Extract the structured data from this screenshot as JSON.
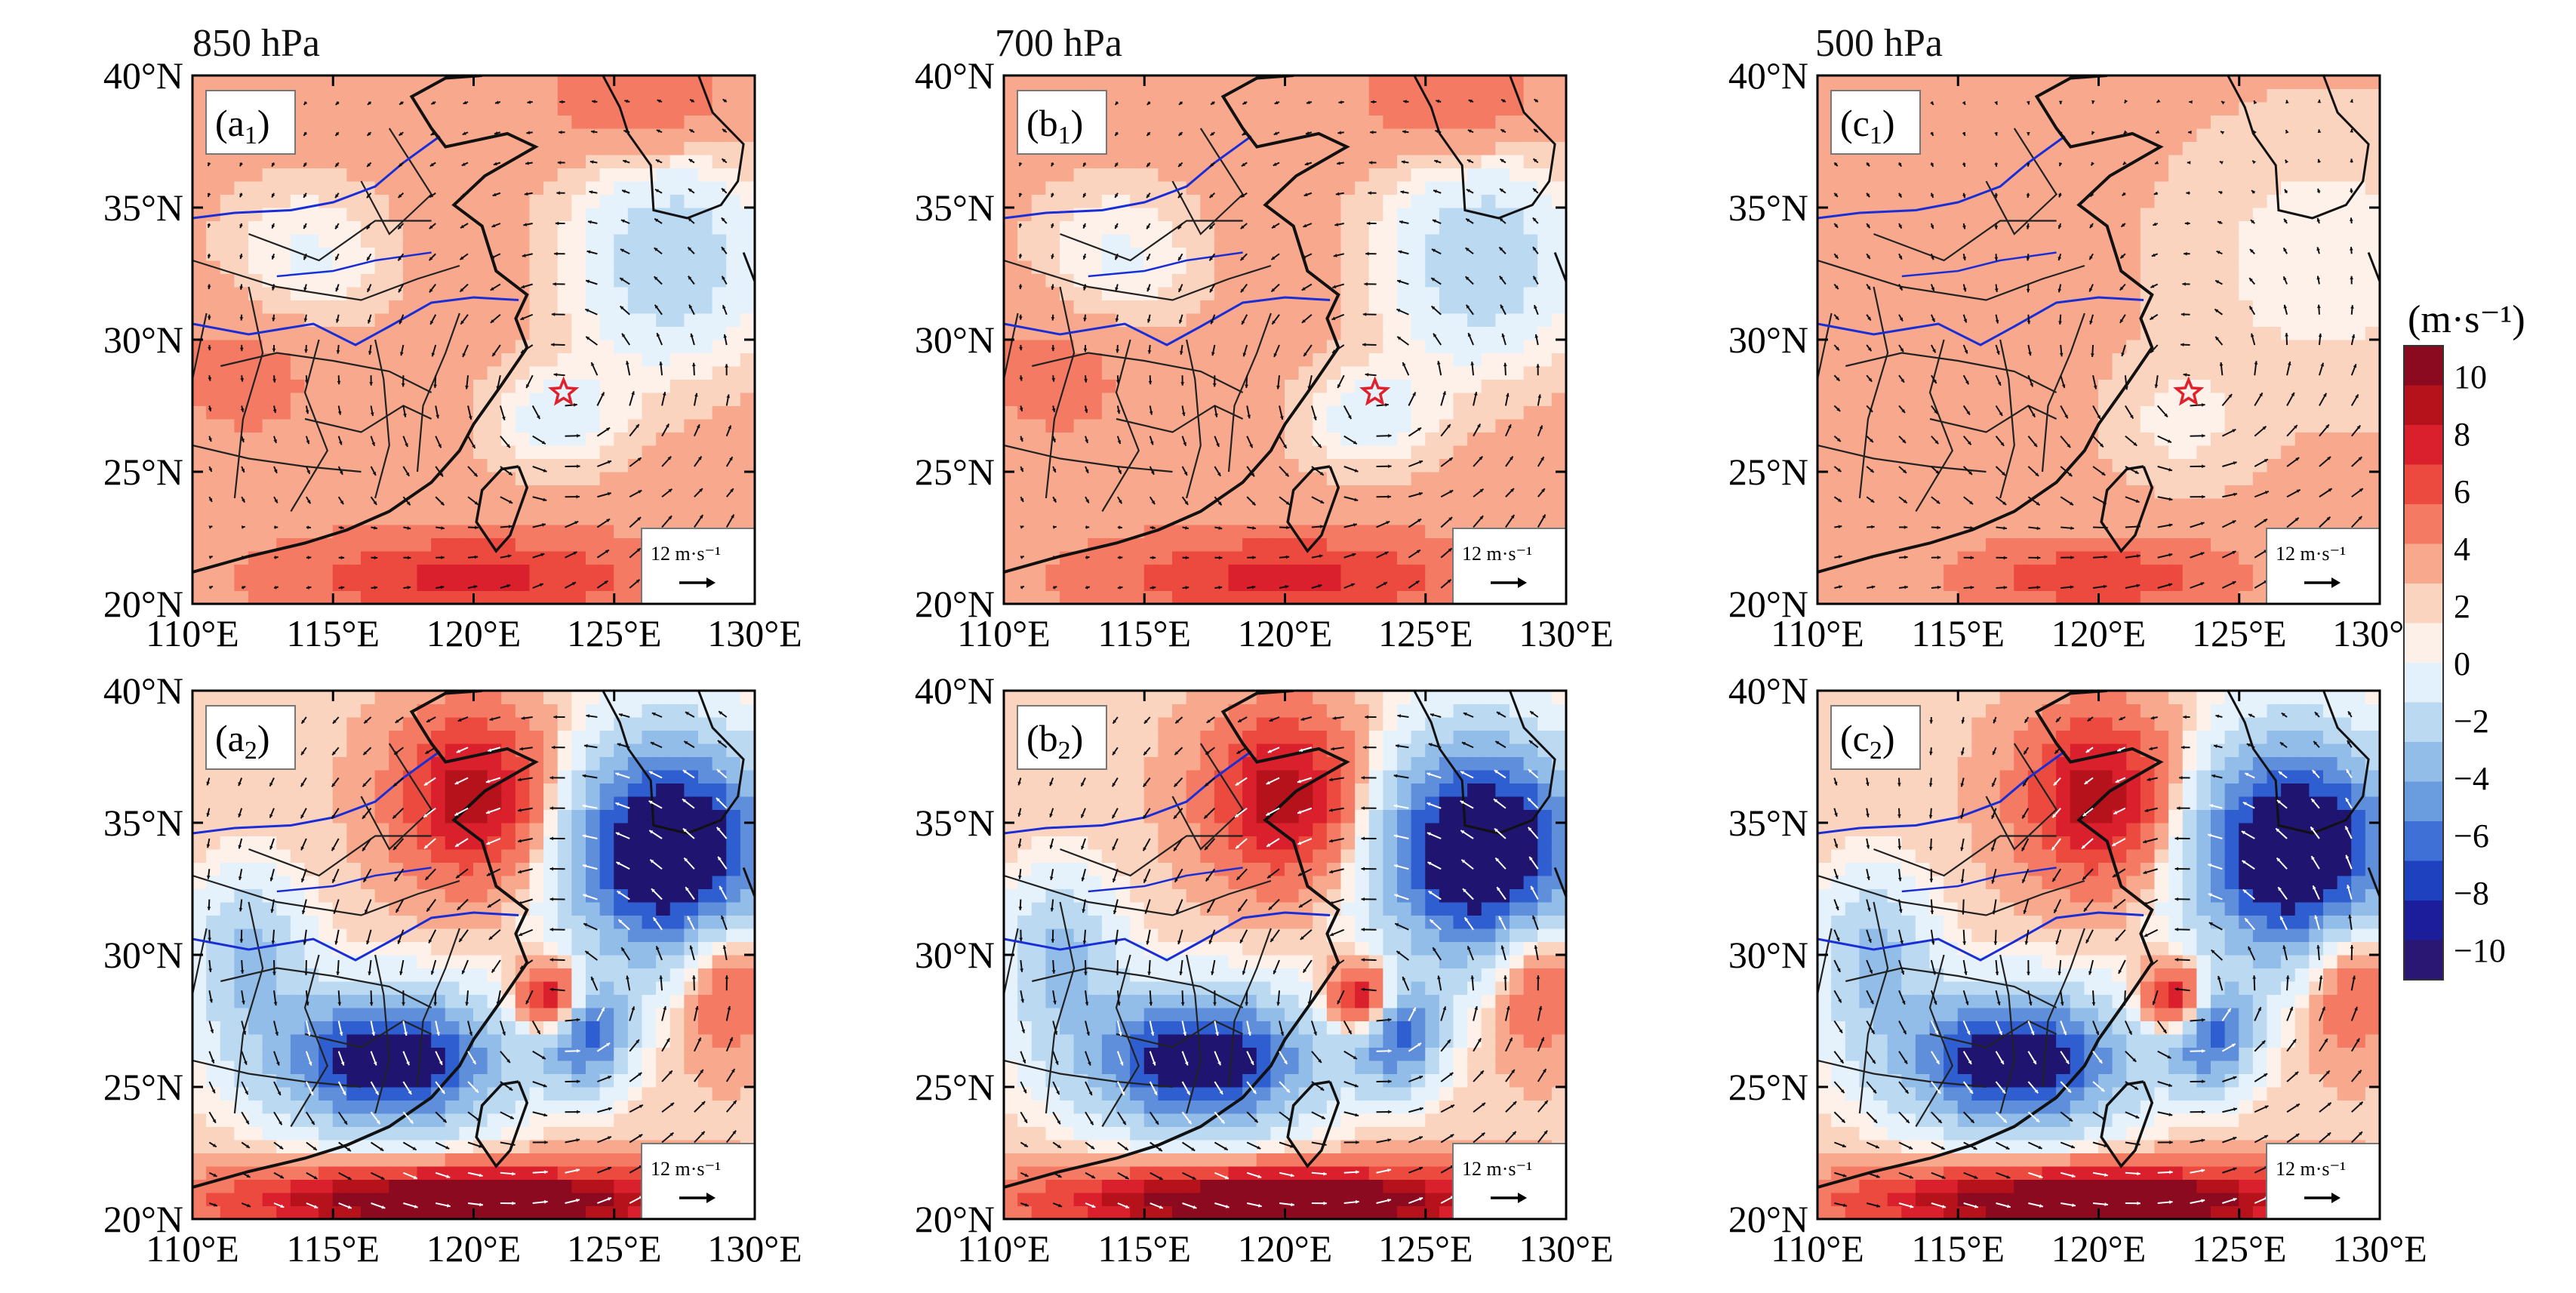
{
  "levels": [
    "850 hPa",
    "700 hPa",
    "500 hPa"
  ],
  "panels": [
    {
      "id": "a1",
      "letter": "a",
      "sub": "1",
      "row": 0,
      "col": 0,
      "scale_label": "12 m·s⁻¹",
      "pattern": "neg_e_pos_s",
      "shown_wind_threshold": 0
    },
    {
      "id": "b1",
      "letter": "b",
      "sub": "1",
      "row": 0,
      "col": 1,
      "scale_label": "12 m·s⁻¹",
      "pattern": "neg_e_pos_s",
      "shown_wind_threshold": 0
    },
    {
      "id": "c1",
      "letter": "c",
      "sub": "1",
      "row": 0,
      "col": 2,
      "scale_label": "12 m·s⁻¹",
      "pattern": "weak",
      "shown_wind_threshold": 0
    },
    {
      "id": "a2",
      "letter": "a",
      "sub": "2",
      "row": 1,
      "col": 0,
      "scale_label": "12 m·s⁻¹",
      "pattern": "strong",
      "shown_wind_threshold": 0
    },
    {
      "id": "b2",
      "letter": "b",
      "sub": "2",
      "row": 1,
      "col": 1,
      "scale_label": "12 m·s⁻¹",
      "pattern": "strong",
      "shown_wind_threshold": 0
    },
    {
      "id": "c2",
      "letter": "c",
      "sub": "2",
      "row": 1,
      "col": 2,
      "scale_label": "12 m·s⁻¹",
      "pattern": "strong",
      "shown_wind_threshold": 0
    }
  ],
  "lat_ticks": [
    "20°N",
    "25°N",
    "30°N",
    "35°N",
    "40°N"
  ],
  "lon_ticks": [
    "110°E",
    "115°E",
    "120°E",
    "125°E",
    "130°E"
  ],
  "lat_range": [
    20,
    40
  ],
  "lon_range": [
    110,
    130
  ],
  "typhoon_marker": {
    "lon": 123.2,
    "lat": 28.0,
    "color": "#e0202a"
  },
  "colorbar": {
    "unit": "(m·s⁻¹)",
    "ticks": [
      "10",
      "8",
      "6",
      "4",
      "2",
      "0",
      "−2",
      "−4",
      "−6",
      "−8",
      "−10"
    ],
    "colors": [
      "#8b0a20",
      "#b5121b",
      "#d9202c",
      "#ec4a3f",
      "#f47a63",
      "#f8a98d",
      "#fbd4c0",
      "#fdf0e8",
      "#e2f1fb",
      "#bcd9f2",
      "#92bde9",
      "#6a9ce0",
      "#3f70d6",
      "#1e41c0",
      "#1b1d9a",
      "#2a1673"
    ]
  },
  "colors": {
    "coast": "#111111",
    "rivers": "#1a2ed6",
    "frame": "#000000"
  }
}
